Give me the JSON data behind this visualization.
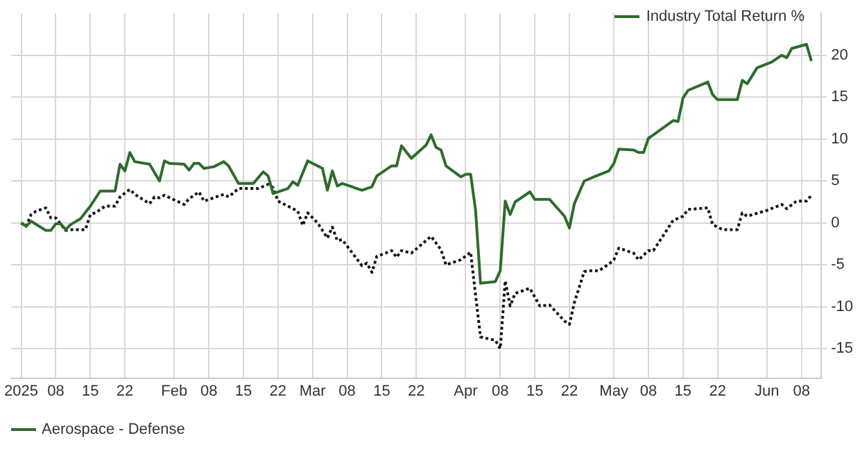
{
  "chart_data": {
    "type": "line",
    "legend_title": "Industry Total Return %",
    "legend": "bottom left",
    "grid": true,
    "xlim": [
      "2024-12-30",
      "2025-06-12"
    ],
    "xticks": [
      {
        "value": "2025-01-01",
        "label": "2025"
      },
      {
        "value": "2025-01-08",
        "label": "08"
      },
      {
        "value": "2025-01-15",
        "label": "15"
      },
      {
        "value": "2025-01-22",
        "label": "22"
      },
      {
        "value": "2025-02-01",
        "label": "Feb"
      },
      {
        "value": "2025-02-08",
        "label": "08"
      },
      {
        "value": "2025-02-15",
        "label": "15"
      },
      {
        "value": "2025-02-22",
        "label": "22"
      },
      {
        "value": "2025-03-01",
        "label": "Mar"
      },
      {
        "value": "2025-03-08",
        "label": "08"
      },
      {
        "value": "2025-03-15",
        "label": "15"
      },
      {
        "value": "2025-03-22",
        "label": "22"
      },
      {
        "value": "2025-04-01",
        "label": "Apr"
      },
      {
        "value": "2025-04-08",
        "label": "08"
      },
      {
        "value": "2025-04-15",
        "label": "15"
      },
      {
        "value": "2025-04-22",
        "label": "22"
      },
      {
        "value": "2025-05-01",
        "label": "May"
      },
      {
        "value": "2025-05-08",
        "label": "08"
      },
      {
        "value": "2025-05-15",
        "label": "15"
      },
      {
        "value": "2025-05-22",
        "label": "22"
      },
      {
        "value": "2025-06-01",
        "label": "Jun"
      },
      {
        "value": "2025-06-08",
        "label": "08"
      }
    ],
    "ylim": [
      -18.5,
      25
    ],
    "yticks": [
      -15,
      -10,
      -5,
      0,
      5,
      10,
      15,
      20
    ],
    "series": [
      {
        "name": "Aerospace - Defense",
        "color": "#2e6b2e",
        "line_style": "solid",
        "x": [
          "2025-01-01",
          "2025-01-02",
          "2025-01-03",
          "2025-01-06",
          "2025-01-07",
          "2025-01-08",
          "2025-01-09",
          "2025-01-10",
          "2025-01-11",
          "2025-01-13",
          "2025-01-15",
          "2025-01-17",
          "2025-01-20",
          "2025-01-21",
          "2025-01-22",
          "2025-01-23",
          "2025-01-24",
          "2025-01-27",
          "2025-01-29",
          "2025-01-30",
          "2025-01-31",
          "2025-02-03",
          "2025-02-04",
          "2025-02-05",
          "2025-02-06",
          "2025-02-07",
          "2025-02-09",
          "2025-02-11",
          "2025-02-12",
          "2025-02-14",
          "2025-02-17",
          "2025-02-19",
          "2025-02-20",
          "2025-02-21",
          "2025-02-24",
          "2025-02-25",
          "2025-02-26",
          "2025-02-28",
          "2025-03-03",
          "2025-03-04",
          "2025-03-05",
          "2025-03-06",
          "2025-03-07",
          "2025-03-11",
          "2025-03-13",
          "2025-03-14",
          "2025-03-17",
          "2025-03-18",
          "2025-03-19",
          "2025-03-21",
          "2025-03-24",
          "2025-03-25",
          "2025-03-26",
          "2025-03-27",
          "2025-03-28",
          "2025-03-31",
          "2025-04-01",
          "2025-04-02",
          "2025-04-03",
          "2025-04-04",
          "2025-04-07",
          "2025-04-08",
          "2025-04-09",
          "2025-04-10",
          "2025-04-11",
          "2025-04-14",
          "2025-04-15",
          "2025-04-18",
          "2025-04-21",
          "2025-04-22",
          "2025-04-23",
          "2025-04-25",
          "2025-04-27",
          "2025-04-30",
          "2025-05-01",
          "2025-05-02",
          "2025-05-05",
          "2025-05-06",
          "2025-05-07",
          "2025-05-08",
          "2025-05-09",
          "2025-05-13",
          "2025-05-14",
          "2025-05-15",
          "2025-05-16",
          "2025-05-20",
          "2025-05-21",
          "2025-05-22",
          "2025-05-26",
          "2025-05-27",
          "2025-05-28",
          "2025-05-30",
          "2025-06-02",
          "2025-06-04",
          "2025-06-05",
          "2025-06-06",
          "2025-06-09",
          "2025-06-10"
        ],
        "values": [
          0,
          -0.4,
          0.2,
          -0.9,
          -0.9,
          -0.1,
          -0.1,
          -0.8,
          -0.2,
          0.5,
          2,
          3.8,
          3.8,
          7,
          6.2,
          8.4,
          7.3,
          7,
          5,
          7.4,
          7.1,
          7,
          6.3,
          7.1,
          7.1,
          6.5,
          6.7,
          7.3,
          6.8,
          4.7,
          4.7,
          6.1,
          5.6,
          3.5,
          4.1,
          4.9,
          4.5,
          7.4,
          6.5,
          3.9,
          6.2,
          4.4,
          4.7,
          3.9,
          4.3,
          5.6,
          6.8,
          6.8,
          9.2,
          7.7,
          9.3,
          10.5,
          9,
          8.7,
          6.8,
          5.5,
          5.8,
          5.8,
          1.5,
          -7.2,
          -7,
          -5.7,
          2.6,
          1,
          2.5,
          3.7,
          2.8,
          2.8,
          0.8,
          -0.6,
          2.3,
          5,
          5.5,
          6.2,
          7.1,
          8.8,
          8.7,
          8.4,
          8.4,
          10.1,
          10.5,
          12.2,
          12.1,
          14.9,
          15.8,
          16.8,
          15.3,
          14.7,
          14.7,
          17,
          16.6,
          18.5,
          19.2,
          20,
          19.7,
          20.8,
          21.3,
          19.3
        ]
      },
      {
        "color": "#111111",
        "line_style": "dotted",
        "x": [
          "2025-01-01",
          "2025-01-02",
          "2025-01-03",
          "2025-01-04",
          "2025-01-06",
          "2025-01-07",
          "2025-01-08",
          "2025-01-10",
          "2025-01-11",
          "2025-01-14",
          "2025-01-15",
          "2025-01-16",
          "2025-01-18",
          "2025-01-20",
          "2025-01-21",
          "2025-01-23",
          "2025-01-24",
          "2025-01-27",
          "2025-01-28",
          "2025-01-29",
          "2025-01-30",
          "2025-02-03",
          "2025-02-04",
          "2025-02-06",
          "2025-02-07",
          "2025-02-11",
          "2025-02-12",
          "2025-02-14",
          "2025-02-18",
          "2025-02-20",
          "2025-02-21",
          "2025-02-22",
          "2025-02-24",
          "2025-02-26",
          "2025-02-27",
          "2025-02-28",
          "2025-03-02",
          "2025-03-04",
          "2025-03-05",
          "2025-03-06",
          "2025-03-07",
          "2025-03-11",
          "2025-03-12",
          "2025-03-13",
          "2025-03-14",
          "2025-03-17",
          "2025-03-18",
          "2025-03-19",
          "2025-03-21",
          "2025-03-25",
          "2025-03-27",
          "2025-03-28",
          "2025-03-31",
          "2025-04-02",
          "2025-04-03",
          "2025-04-04",
          "2025-04-07",
          "2025-04-08",
          "2025-04-09",
          "2025-04-10",
          "2025-04-11",
          "2025-04-14",
          "2025-04-16",
          "2025-04-18",
          "2025-04-21",
          "2025-04-22",
          "2025-04-23",
          "2025-04-25",
          "2025-04-26",
          "2025-04-28",
          "2025-04-30",
          "2025-05-01",
          "2025-05-02",
          "2025-05-05",
          "2025-05-06",
          "2025-05-08",
          "2025-05-09",
          "2025-05-13",
          "2025-05-15",
          "2025-05-16",
          "2025-05-20",
          "2025-05-21",
          "2025-05-23",
          "2025-05-26",
          "2025-05-27",
          "2025-05-28",
          "2025-06-01",
          "2025-06-04",
          "2025-06-05",
          "2025-06-07",
          "2025-06-09",
          "2025-06-10"
        ],
        "values": [
          0,
          -0.4,
          1,
          1.4,
          1.8,
          0.6,
          0.6,
          -0.9,
          -0.8,
          -0.8,
          1,
          1.2,
          2,
          2,
          3.1,
          4,
          3.4,
          2.3,
          3.1,
          3,
          3.3,
          2.2,
          2.9,
          3.7,
          2.6,
          3.4,
          3.1,
          4.1,
          4.1,
          4.6,
          4.2,
          2.6,
          2,
          1.4,
          -0.3,
          1.2,
          0,
          -1.8,
          -0.5,
          -2.1,
          -2,
          -5.1,
          -4.8,
          -5.9,
          -4,
          -3.3,
          -4.1,
          -3.3,
          -3.6,
          -1.6,
          -3.2,
          -5,
          -4.4,
          -3.5,
          -8.6,
          -13.6,
          -14,
          -15,
          -6.9,
          -9.9,
          -8.4,
          -7.8,
          -9.9,
          -9.8,
          -11.7,
          -12.1,
          -9.5,
          -5.8,
          -5.7,
          -5.7,
          -4.9,
          -4.4,
          -3,
          -3.6,
          -4.4,
          -3.3,
          -3.3,
          0.3,
          0.8,
          1.6,
          1.8,
          -0.2,
          -0.8,
          -0.8,
          1.2,
          0.8,
          1.5,
          2.2,
          1.7,
          2.6,
          2.6,
          3.3
        ]
      }
    ]
  }
}
